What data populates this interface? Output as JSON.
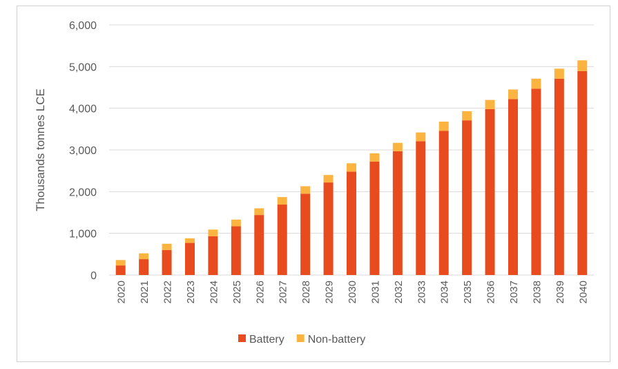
{
  "chart_data": {
    "type": "bar",
    "stacked": true,
    "title": "",
    "xlabel": "",
    "ylabel": "Thousands tonnes LCE",
    "ylim": [
      0,
      6000
    ],
    "yticks": [
      0,
      1000,
      2000,
      3000,
      4000,
      5000,
      6000
    ],
    "ytick_labels": [
      "0",
      "1,000",
      "2,000",
      "3,000",
      "4,000",
      "5,000",
      "6,000"
    ],
    "grid": true,
    "legend_position": "bottom",
    "categories": [
      "2020",
      "2021",
      "2022",
      "2023",
      "2024",
      "2025",
      "2026",
      "2027",
      "2028",
      "2029",
      "2030",
      "2031",
      "2032",
      "2033",
      "2034",
      "2035",
      "2036",
      "2037",
      "2038",
      "2039",
      "2040"
    ],
    "series": [
      {
        "name": "Battery",
        "color": "#e84c1e",
        "values": [
          230,
          380,
          600,
          770,
          930,
          1170,
          1440,
          1690,
          1950,
          2220,
          2480,
          2720,
          2970,
          3210,
          3460,
          3710,
          3980,
          4220,
          4470,
          4710,
          4890
        ]
      },
      {
        "name": "Non-battery",
        "color": "#fbb440",
        "values": [
          130,
          140,
          150,
          110,
          160,
          160,
          160,
          180,
          180,
          180,
          200,
          200,
          200,
          210,
          220,
          220,
          220,
          230,
          240,
          240,
          260
        ]
      }
    ]
  }
}
